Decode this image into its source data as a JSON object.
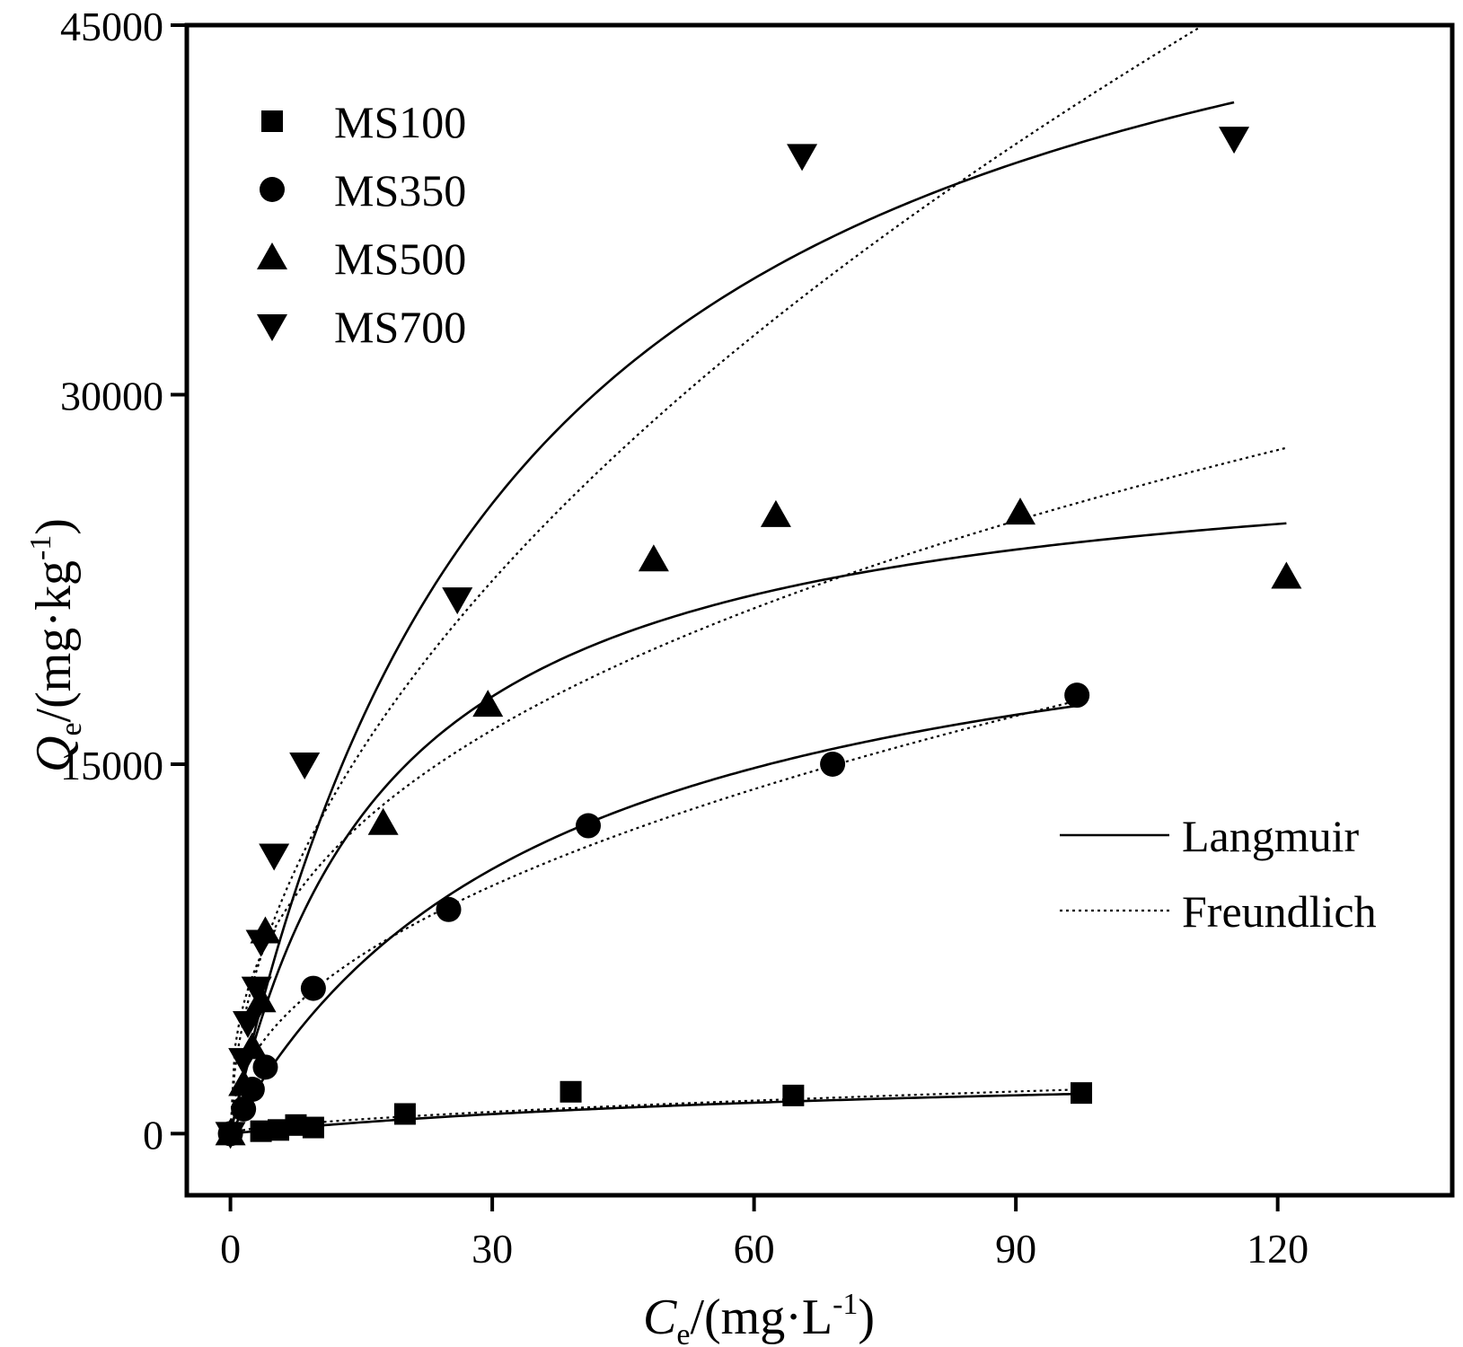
{
  "chart_data": {
    "type": "scatter",
    "title": "",
    "xlabel": {
      "main": "C",
      "sub": "e",
      "rest": "/(mg·L",
      "sup": "-1",
      "close": ")"
    },
    "ylabel": {
      "main": "Q",
      "sub": "e",
      "rest": "/(mg·kg",
      "sup": "-1",
      "close": ")"
    },
    "xlim": [
      -5,
      140
    ],
    "ylim": [
      -2500,
      45000
    ],
    "x_ticks": [
      0,
      30,
      60,
      90,
      120
    ],
    "x_tick_labels": [
      "0",
      "30",
      "60",
      "90",
      "120"
    ],
    "y_ticks": [
      0,
      15000,
      30000,
      45000
    ],
    "y_tick_labels": [
      "0",
      "15000",
      "30000",
      "45000"
    ],
    "legend_position": "top-left",
    "series": [
      {
        "name": "MS100",
        "marker": "square",
        "points": [
          [
            0,
            0
          ],
          [
            3.5,
            100
          ],
          [
            5.5,
            150
          ],
          [
            7.5,
            350
          ],
          [
            9.5,
            250
          ],
          [
            20,
            800
          ],
          [
            39,
            1700
          ],
          [
            64.5,
            1550
          ],
          [
            97.5,
            1650
          ]
        ],
        "langmuir": {
          "qmax": 3000,
          "K": 0.012,
          "xmax": 97.5
        },
        "freundlich": {
          "Kf": 115,
          "n": 0.6,
          "xmax": 97.5
        }
      },
      {
        "name": "MS350",
        "marker": "circle",
        "points": [
          [
            0,
            0
          ],
          [
            1.5,
            1000
          ],
          [
            2.5,
            1800
          ],
          [
            4,
            2700
          ],
          [
            9.5,
            5900
          ],
          [
            25,
            9100
          ],
          [
            41,
            12500
          ],
          [
            69,
            15000
          ],
          [
            97,
            17800
          ]
        ],
        "langmuir": {
          "qmax": 24000,
          "K": 0.027,
          "xmax": 97
        },
        "freundlich": {
          "Kf": 2000,
          "n": 0.475,
          "xmax": 97
        }
      },
      {
        "name": "MS500",
        "marker": "triangle-up",
        "points": [
          [
            0,
            0
          ],
          [
            1.5,
            2000
          ],
          [
            2.5,
            3500
          ],
          [
            3.5,
            5400
          ],
          [
            4,
            8200
          ],
          [
            17.5,
            12600
          ],
          [
            29.5,
            17400
          ],
          [
            48.5,
            23300
          ],
          [
            62.5,
            25100
          ],
          [
            90.5,
            25200
          ],
          [
            121,
            22600
          ]
        ],
        "langmuir": {
          "qmax": 28500,
          "K": 0.055,
          "xmax": 121
        },
        "freundlich": {
          "Kf": 4500,
          "n": 0.38,
          "xmax": 121
        }
      },
      {
        "name": "MS700",
        "marker": "triangle-down",
        "points": [
          [
            0,
            0
          ],
          [
            1.5,
            3000
          ],
          [
            2,
            4500
          ],
          [
            3,
            5900
          ],
          [
            3.5,
            7800
          ],
          [
            5,
            11300
          ],
          [
            8.5,
            15000
          ],
          [
            26,
            21700
          ],
          [
            65.5,
            39700
          ],
          [
            115,
            40400
          ]
        ],
        "langmuir": {
          "qmax": 54000,
          "K": 0.03,
          "xmax": 115
        },
        "freundlich": {
          "Kf": 3700,
          "n": 0.53,
          "xmax": 115
        }
      }
    ],
    "fit_legend": [
      {
        "name": "Langmuir",
        "style": "solid"
      },
      {
        "name": "Freundlich",
        "style": "dotted"
      }
    ]
  }
}
